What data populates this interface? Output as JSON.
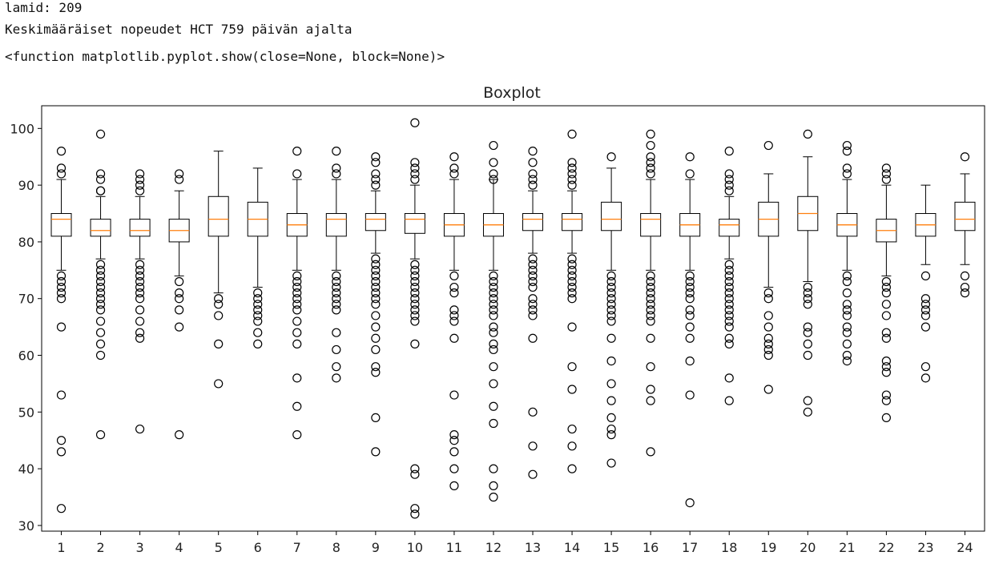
{
  "output_lines": [
    "lamid: 209",
    "Keskimääräiset nopeudet HCT 759 päivän ajalta",
    "<function matplotlib.pyplot.show(close=None, block=None)>"
  ],
  "colors": {
    "median": "#ff7f0e",
    "box": "#000000",
    "axes": "#000000"
  },
  "chart_data": {
    "type": "boxplot",
    "title": "Boxplot",
    "xlabel": "",
    "ylabel": "",
    "ylim": [
      29,
      104
    ],
    "yticks": [
      30,
      40,
      50,
      60,
      70,
      80,
      90,
      100
    ],
    "grid": false,
    "categories": [
      "1",
      "2",
      "3",
      "4",
      "5",
      "6",
      "7",
      "8",
      "9",
      "10",
      "11",
      "12",
      "13",
      "14",
      "15",
      "16",
      "17",
      "18",
      "19",
      "20",
      "21",
      "22",
      "23",
      "24"
    ],
    "boxes": [
      {
        "q1": 81,
        "median": 84,
        "q3": 85,
        "whislo": 75,
        "whishi": 91,
        "fliers": [
          96,
          93,
          92,
          74,
          73,
          72,
          71,
          70,
          65,
          53,
          45,
          43,
          33
        ]
      },
      {
        "q1": 81,
        "median": 82,
        "q3": 84,
        "whislo": 77,
        "whishi": 88,
        "fliers": [
          99,
          92,
          91,
          89,
          89,
          76,
          75,
          74,
          73,
          72,
          71,
          70,
          69,
          68,
          66,
          64,
          62,
          60,
          46
        ]
      },
      {
        "q1": 81,
        "median": 82,
        "q3": 84,
        "whislo": 77,
        "whishi": 88,
        "fliers": [
          92,
          91,
          90,
          89,
          76,
          75,
          74,
          73,
          72,
          71,
          70,
          68,
          66,
          64,
          63,
          47
        ]
      },
      {
        "q1": 80,
        "median": 82,
        "q3": 84,
        "whislo": 74,
        "whishi": 89,
        "fliers": [
          92,
          91,
          73,
          71,
          70,
          68,
          65,
          46
        ]
      },
      {
        "q1": 81,
        "median": 84,
        "q3": 88,
        "whislo": 71,
        "whishi": 96,
        "fliers": [
          70,
          69,
          67,
          62,
          55
        ]
      },
      {
        "q1": 81,
        "median": 84,
        "q3": 87,
        "whislo": 72,
        "whishi": 93,
        "fliers": [
          71,
          70,
          69,
          68,
          67,
          66,
          64,
          62
        ]
      },
      {
        "q1": 81,
        "median": 83,
        "q3": 85,
        "whislo": 75,
        "whishi": 91,
        "fliers": [
          96,
          92,
          74,
          73,
          72,
          71,
          70,
          69,
          68,
          66,
          64,
          62,
          56,
          51,
          46
        ]
      },
      {
        "q1": 81,
        "median": 84,
        "q3": 85,
        "whislo": 75,
        "whishi": 91,
        "fliers": [
          96,
          93,
          92,
          74,
          73,
          72,
          71,
          70,
          69,
          68,
          64,
          61,
          58,
          56
        ]
      },
      {
        "q1": 82,
        "median": 84,
        "q3": 85,
        "whislo": 78,
        "whishi": 89,
        "fliers": [
          95,
          94,
          92,
          91,
          90,
          77,
          76,
          75,
          74,
          73,
          72,
          71,
          70,
          69,
          67,
          65,
          63,
          61,
          58,
          57,
          49,
          43
        ]
      },
      {
        "q1": 81.5,
        "median": 84,
        "q3": 85,
        "whislo": 77,
        "whishi": 90,
        "fliers": [
          101,
          94,
          93,
          92,
          91,
          76,
          75,
          74,
          73,
          72,
          71,
          70,
          69,
          68,
          67,
          66,
          62,
          40,
          39,
          33,
          32
        ]
      },
      {
        "q1": 81,
        "median": 83,
        "q3": 85,
        "whislo": 75,
        "whishi": 91,
        "fliers": [
          95,
          93,
          92,
          74,
          72,
          71,
          68,
          67,
          66,
          63,
          53,
          46,
          45,
          43,
          40,
          37
        ]
      },
      {
        "q1": 81,
        "median": 83,
        "q3": 85,
        "whislo": 75,
        "whishi": 91,
        "fliers": [
          97,
          94,
          92,
          91,
          74,
          73,
          72,
          71,
          70,
          69,
          68,
          67,
          65,
          64,
          62,
          61,
          58,
          55,
          51,
          48,
          40,
          37,
          35
        ]
      },
      {
        "q1": 82,
        "median": 84,
        "q3": 85,
        "whislo": 78,
        "whishi": 89,
        "fliers": [
          96,
          94,
          92,
          91,
          90,
          77,
          76,
          75,
          74,
          73,
          72,
          70,
          69,
          68,
          67,
          63,
          50,
          44,
          39
        ]
      },
      {
        "q1": 82,
        "median": 84,
        "q3": 85,
        "whislo": 78,
        "whishi": 89,
        "fliers": [
          99,
          94,
          93,
          92,
          91,
          90,
          77,
          76,
          75,
          74,
          73,
          72,
          71,
          70,
          65,
          58,
          54,
          47,
          44,
          40
        ]
      },
      {
        "q1": 82,
        "median": 84,
        "q3": 87,
        "whislo": 75,
        "whishi": 93,
        "fliers": [
          95,
          74,
          73,
          72,
          71,
          70,
          69,
          68,
          67,
          66,
          63,
          59,
          55,
          52,
          49,
          47,
          46,
          41
        ]
      },
      {
        "q1": 81,
        "median": 84,
        "q3": 85,
        "whislo": 75,
        "whishi": 91,
        "fliers": [
          99,
          97,
          95,
          94,
          93,
          92,
          74,
          73,
          72,
          71,
          70,
          69,
          68,
          67,
          66,
          63,
          58,
          54,
          52,
          43
        ]
      },
      {
        "q1": 81,
        "median": 83,
        "q3": 85,
        "whislo": 75,
        "whishi": 91,
        "fliers": [
          95,
          92,
          74,
          73,
          72,
          71,
          70,
          68,
          67,
          65,
          63,
          59,
          53,
          34
        ]
      },
      {
        "q1": 81,
        "median": 83,
        "q3": 84,
        "whislo": 77,
        "whishi": 88,
        "fliers": [
          96,
          92,
          91,
          90,
          89,
          76,
          75,
          74,
          73,
          72,
          71,
          70,
          69,
          68,
          67,
          66,
          65,
          63,
          62,
          56,
          52
        ]
      },
      {
        "q1": 81,
        "median": 84,
        "q3": 87,
        "whislo": 72,
        "whishi": 92,
        "fliers": [
          97,
          71,
          70,
          67,
          65,
          63,
          62,
          61,
          60,
          54
        ]
      },
      {
        "q1": 82,
        "median": 85,
        "q3": 88,
        "whislo": 73,
        "whishi": 95,
        "fliers": [
          99,
          72,
          71,
          70,
          69,
          65,
          64,
          62,
          60,
          52,
          50
        ]
      },
      {
        "q1": 81,
        "median": 83,
        "q3": 85,
        "whislo": 75,
        "whishi": 91,
        "fliers": [
          97,
          96,
          93,
          92,
          74,
          73,
          71,
          69,
          68,
          67,
          65,
          64,
          62,
          60,
          59
        ]
      },
      {
        "q1": 80,
        "median": 82,
        "q3": 84,
        "whislo": 74,
        "whishi": 90,
        "fliers": [
          93,
          92,
          91,
          73,
          72,
          71,
          69,
          67,
          64,
          63,
          59,
          58,
          57,
          53,
          52,
          49
        ]
      },
      {
        "q1": 81,
        "median": 83,
        "q3": 85,
        "whislo": 76,
        "whishi": 90,
        "fliers": [
          74,
          70,
          69,
          68,
          67,
          65,
          58,
          56
        ]
      },
      {
        "q1": 82,
        "median": 84,
        "q3": 87,
        "whislo": 76,
        "whishi": 92,
        "fliers": [
          95,
          74,
          72,
          71
        ]
      }
    ]
  }
}
